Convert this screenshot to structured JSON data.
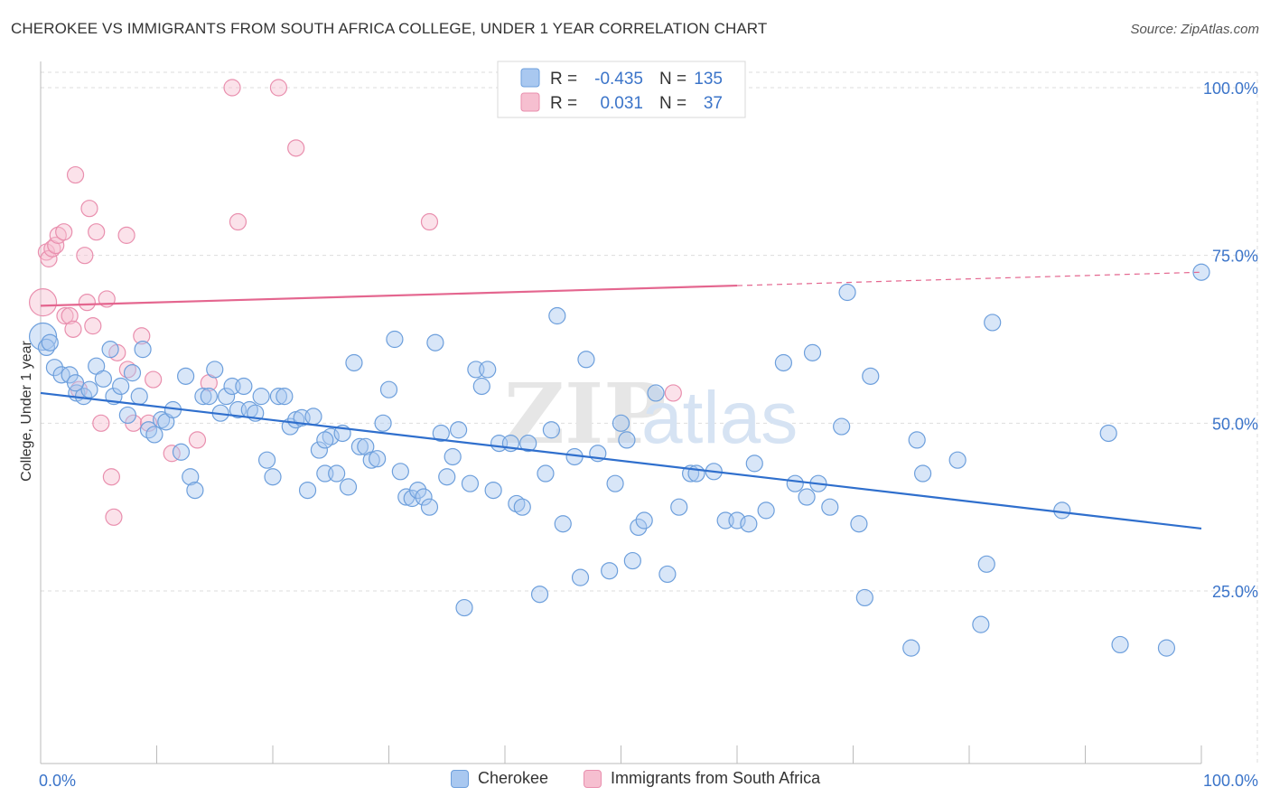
{
  "header": {
    "title": "CHEROKEE VS IMMIGRANTS FROM SOUTH AFRICA COLLEGE, UNDER 1 YEAR CORRELATION CHART",
    "source": "Source: ZipAtlas.com"
  },
  "watermark": {
    "zip": "ZIP",
    "atlas": "atlas"
  },
  "legend": {
    "rows": [
      {
        "r_label": "R =",
        "r_value": "-0.435",
        "n_label": "N =",
        "n_value": "135"
      },
      {
        "r_label": "R =",
        "r_value": "0.031",
        "n_label": "N =",
        "n_value": "37"
      }
    ]
  },
  "colors": {
    "cherokee_fill": "#a9c8f0",
    "cherokee_stroke": "#6d9fdc",
    "cherokee_line": "#2f6fcd",
    "sa_fill": "#f6bfd0",
    "sa_stroke": "#e98fae",
    "sa_line": "#e4668f",
    "tick_text": "#3b74c9",
    "grid": "#dddddd"
  },
  "chart_data": {
    "type": "scatter",
    "title": "CHEROKEE VS IMMIGRANTS FROM SOUTH AFRICA COLLEGE, UNDER 1 YEAR CORRELATION CHART",
    "xlabel": "",
    "ylabel": "College, Under 1 year",
    "xlim": [
      0,
      100
    ],
    "ylim": [
      0,
      100
    ],
    "x_tick_labels": [
      "0.0%",
      "100.0%"
    ],
    "y_ticks": [
      25,
      50,
      75,
      100
    ],
    "y_tick_labels": [
      "25.0%",
      "50.0%",
      "75.0%",
      "100.0%"
    ],
    "grid": true,
    "legend_position": "top-center",
    "series": [
      {
        "name": "Cherokee",
        "R": -0.435,
        "N": 135,
        "trend": {
          "x": [
            0,
            100
          ],
          "y": [
            54.5,
            34.3
          ]
        },
        "points": [
          [
            0.2,
            62.9
          ],
          [
            0.5,
            61.3
          ],
          [
            1.2,
            58.3
          ],
          [
            1.8,
            57.2
          ],
          [
            2.5,
            57.2
          ],
          [
            3.1,
            54.5
          ],
          [
            3.7,
            54.0
          ],
          [
            4.2,
            55.0
          ],
          [
            4.8,
            58.5
          ],
          [
            5.4,
            56.6
          ],
          [
            6.0,
            61.0
          ],
          [
            6.3,
            54.0
          ],
          [
            6.9,
            55.5
          ],
          [
            7.5,
            51.2
          ],
          [
            7.9,
            57.5
          ],
          [
            8.5,
            54.0
          ],
          [
            8.8,
            61.0
          ],
          [
            9.3,
            49.0
          ],
          [
            9.8,
            48.3
          ],
          [
            10.4,
            50.5
          ],
          [
            10.8,
            50.2
          ],
          [
            11.4,
            52.0
          ],
          [
            12.1,
            45.7
          ],
          [
            12.5,
            57.0
          ],
          [
            12.9,
            42.0
          ],
          [
            13.3,
            40.0
          ],
          [
            14.0,
            54.0
          ],
          [
            14.5,
            54.0
          ],
          [
            15.0,
            58.0
          ],
          [
            15.5,
            51.5
          ],
          [
            16.0,
            54.0
          ],
          [
            16.5,
            55.5
          ],
          [
            17.0,
            52.0
          ],
          [
            17.5,
            55.5
          ],
          [
            18.0,
            52.0
          ],
          [
            18.5,
            51.5
          ],
          [
            19.0,
            54.0
          ],
          [
            19.5,
            44.5
          ],
          [
            20.0,
            42.0
          ],
          [
            20.5,
            54.0
          ],
          [
            21.0,
            54.0
          ],
          [
            21.5,
            49.5
          ],
          [
            22.0,
            50.5
          ],
          [
            22.5,
            50.8
          ],
          [
            23.0,
            40.0
          ],
          [
            23.5,
            51.0
          ],
          [
            24.0,
            46.0
          ],
          [
            24.5,
            42.5
          ],
          [
            25.0,
            48.0
          ],
          [
            25.5,
            42.5
          ],
          [
            26.0,
            48.5
          ],
          [
            26.5,
            40.5
          ],
          [
            27.0,
            59.0
          ],
          [
            27.5,
            46.5
          ],
          [
            28.0,
            46.5
          ],
          [
            28.5,
            44.5
          ],
          [
            29.0,
            44.7
          ],
          [
            29.5,
            50.0
          ],
          [
            30.0,
            55.0
          ],
          [
            30.5,
            62.5
          ],
          [
            31.0,
            42.8
          ],
          [
            31.5,
            39.0
          ],
          [
            32.0,
            38.8
          ],
          [
            32.5,
            40.0
          ],
          [
            33.0,
            39.0
          ],
          [
            33.5,
            37.5
          ],
          [
            34.0,
            62.0
          ],
          [
            34.5,
            48.5
          ],
          [
            35.0,
            42.0
          ],
          [
            35.5,
            45.0
          ],
          [
            36.0,
            49.0
          ],
          [
            36.5,
            22.5
          ],
          [
            37.0,
            41.0
          ],
          [
            37.5,
            58.0
          ],
          [
            38.0,
            55.5
          ],
          [
            38.5,
            58.0
          ],
          [
            39.0,
            40.0
          ],
          [
            39.5,
            47.0
          ],
          [
            40.5,
            47.0
          ],
          [
            41.0,
            38.0
          ],
          [
            41.5,
            37.5
          ],
          [
            42.0,
            47.0
          ],
          [
            43.0,
            24.5
          ],
          [
            43.5,
            42.5
          ],
          [
            44.0,
            49.0
          ],
          [
            44.5,
            66.0
          ],
          [
            45.0,
            35.0
          ],
          [
            46.0,
            45.0
          ],
          [
            46.5,
            27.0
          ],
          [
            47.0,
            59.5
          ],
          [
            48.0,
            45.5
          ],
          [
            49.0,
            28.0
          ],
          [
            49.5,
            41.0
          ],
          [
            50.0,
            50.0
          ],
          [
            50.5,
            47.5
          ],
          [
            51.0,
            29.5
          ],
          [
            51.5,
            34.5
          ],
          [
            52.0,
            35.5
          ],
          [
            53.0,
            54.5
          ],
          [
            54.0,
            27.5
          ],
          [
            55.0,
            37.5
          ],
          [
            56.0,
            42.5
          ],
          [
            56.5,
            42.5
          ],
          [
            58.0,
            42.8
          ],
          [
            59.0,
            35.5
          ],
          [
            60.0,
            35.5
          ],
          [
            61.0,
            35.0
          ],
          [
            61.5,
            44.0
          ],
          [
            62.5,
            37.0
          ],
          [
            64.0,
            59.0
          ],
          [
            65.0,
            41.0
          ],
          [
            66.0,
            39.0
          ],
          [
            66.5,
            60.5
          ],
          [
            67.0,
            41.0
          ],
          [
            68.0,
            37.5
          ],
          [
            69.0,
            49.5
          ],
          [
            69.5,
            69.5
          ],
          [
            70.5,
            35.0
          ],
          [
            71.0,
            24.0
          ],
          [
            71.5,
            57.0
          ],
          [
            75.0,
            16.5
          ],
          [
            75.5,
            47.5
          ],
          [
            76.0,
            42.5
          ],
          [
            79.0,
            44.5
          ],
          [
            81.0,
            20.0
          ],
          [
            81.5,
            29.0
          ],
          [
            82.0,
            65.0
          ],
          [
            88.0,
            37.0
          ],
          [
            92.0,
            48.5
          ],
          [
            93.0,
            17.0
          ],
          [
            97.0,
            16.5
          ],
          [
            100.0,
            72.5
          ],
          [
            0.8,
            62.0
          ],
          [
            3.0,
            56.0
          ],
          [
            24.5,
            47.5
          ]
        ]
      },
      {
        "name": "Immigrants from South Africa",
        "R": 0.031,
        "N": 37,
        "trend": {
          "x": [
            0,
            100
          ],
          "y": [
            67.5,
            72.5
          ],
          "solid_until_x": 60
        },
        "points": [
          [
            0.2,
            68.0
          ],
          [
            0.5,
            75.5
          ],
          [
            0.7,
            74.5
          ],
          [
            1.0,
            76.0
          ],
          [
            1.3,
            76.5
          ],
          [
            1.5,
            78.0
          ],
          [
            2.0,
            78.5
          ],
          [
            2.1,
            66.0
          ],
          [
            2.5,
            66.0
          ],
          [
            2.8,
            64.0
          ],
          [
            3.0,
            87.0
          ],
          [
            3.3,
            55.0
          ],
          [
            3.8,
            75.0
          ],
          [
            4.0,
            68.0
          ],
          [
            4.2,
            82.0
          ],
          [
            4.5,
            64.5
          ],
          [
            4.8,
            78.5
          ],
          [
            5.2,
            50.0
          ],
          [
            5.7,
            68.5
          ],
          [
            6.1,
            42.0
          ],
          [
            6.3,
            36.0
          ],
          [
            6.6,
            60.5
          ],
          [
            7.4,
            78.0
          ],
          [
            7.5,
            58.0
          ],
          [
            8.0,
            50.0
          ],
          [
            8.7,
            63.0
          ],
          [
            9.3,
            50.0
          ],
          [
            9.7,
            56.5
          ],
          [
            11.3,
            45.5
          ],
          [
            13.5,
            47.5
          ],
          [
            14.5,
            56.0
          ],
          [
            16.5,
            100.0
          ],
          [
            17.0,
            80.0
          ],
          [
            20.5,
            100.0
          ],
          [
            22.0,
            91.0
          ],
          [
            33.5,
            80.0
          ],
          [
            54.5,
            54.5
          ]
        ]
      }
    ]
  },
  "bottom_legend": {
    "items": [
      {
        "label": "Cherokee"
      },
      {
        "label": "Immigrants from South Africa"
      }
    ]
  }
}
